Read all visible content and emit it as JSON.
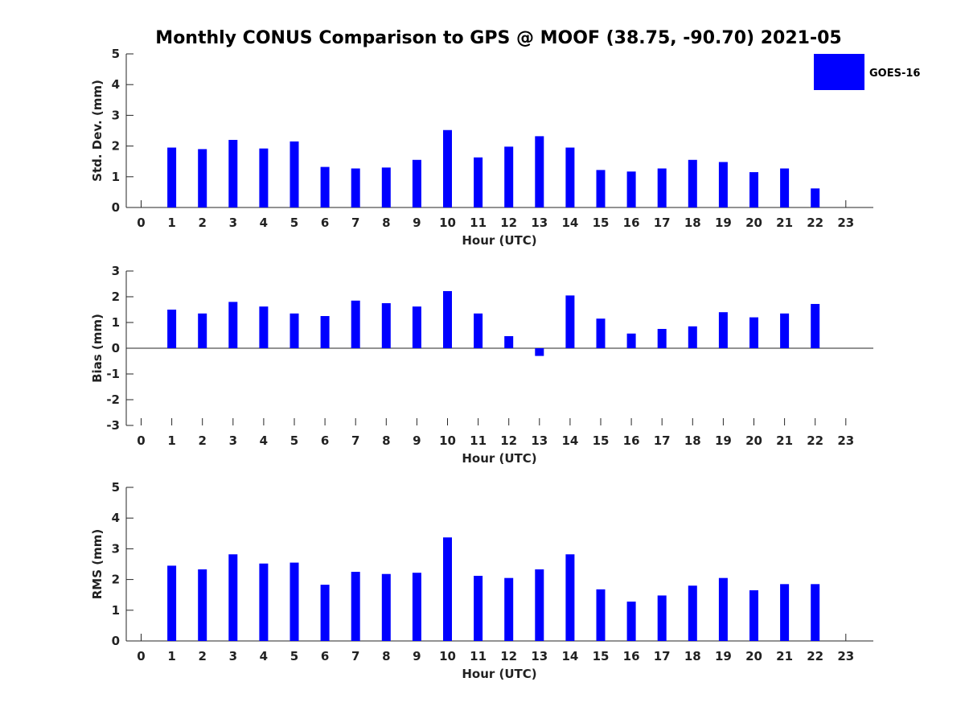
{
  "title": "Monthly CONUS Comparison to GPS @ MOOF (38.75, -90.70) 2021-05",
  "legend": {
    "label": "GOES-16",
    "placement": "top-right"
  },
  "colors": {
    "bar": "#0000ff",
    "axis": "#262626",
    "text": "#222222"
  },
  "chart_data": [
    {
      "type": "bar",
      "xlabel": "Hour (UTC)",
      "ylabel": "Std. Dev. (mm)",
      "ylim": [
        0,
        5
      ],
      "yticks": [
        0,
        1,
        2,
        3,
        4,
        5
      ],
      "categories": [
        "0",
        "1",
        "2",
        "3",
        "4",
        "5",
        "6",
        "7",
        "8",
        "9",
        "10",
        "11",
        "12",
        "13",
        "14",
        "15",
        "16",
        "17",
        "18",
        "19",
        "20",
        "21",
        "22",
        "23"
      ],
      "series": [
        {
          "name": "GOES-16",
          "values": [
            null,
            1.95,
            1.9,
            2.2,
            1.92,
            2.15,
            1.32,
            1.27,
            1.3,
            1.55,
            2.52,
            1.63,
            1.98,
            2.32,
            1.95,
            1.22,
            1.17,
            1.27,
            1.55,
            1.48,
            1.15,
            1.27,
            0.62,
            null
          ]
        }
      ],
      "grid": false
    },
    {
      "type": "bar",
      "xlabel": "Hour (UTC)",
      "ylabel": "Bias (mm)",
      "ylim": [
        -3,
        3
      ],
      "yticks": [
        -3,
        -2,
        -1,
        0,
        1,
        2,
        3
      ],
      "categories": [
        "0",
        "1",
        "2",
        "3",
        "4",
        "5",
        "6",
        "7",
        "8",
        "9",
        "10",
        "11",
        "12",
        "13",
        "14",
        "15",
        "16",
        "17",
        "18",
        "19",
        "20",
        "21",
        "22",
        "23"
      ],
      "series": [
        {
          "name": "GOES-16",
          "values": [
            null,
            1.5,
            1.35,
            1.8,
            1.62,
            1.35,
            1.25,
            1.85,
            1.75,
            1.62,
            2.22,
            1.35,
            0.47,
            -0.3,
            2.05,
            1.15,
            0.57,
            0.75,
            0.85,
            1.4,
            1.2,
            1.35,
            1.72,
            null
          ]
        }
      ],
      "grid": false
    },
    {
      "type": "bar",
      "xlabel": "Hour (UTC)",
      "ylabel": "RMS (mm)",
      "ylim": [
        0,
        5
      ],
      "yticks": [
        0,
        1,
        2,
        3,
        4,
        5
      ],
      "categories": [
        "0",
        "1",
        "2",
        "3",
        "4",
        "5",
        "6",
        "7",
        "8",
        "9",
        "10",
        "11",
        "12",
        "13",
        "14",
        "15",
        "16",
        "17",
        "18",
        "19",
        "20",
        "21",
        "22",
        "23"
      ],
      "series": [
        {
          "name": "GOES-16",
          "values": [
            null,
            2.45,
            2.33,
            2.82,
            2.52,
            2.55,
            1.83,
            2.25,
            2.18,
            2.22,
            3.37,
            2.12,
            2.05,
            2.33,
            2.82,
            1.68,
            1.28,
            1.48,
            1.8,
            2.05,
            1.65,
            1.85,
            1.85,
            null
          ]
        }
      ],
      "grid": false
    }
  ]
}
